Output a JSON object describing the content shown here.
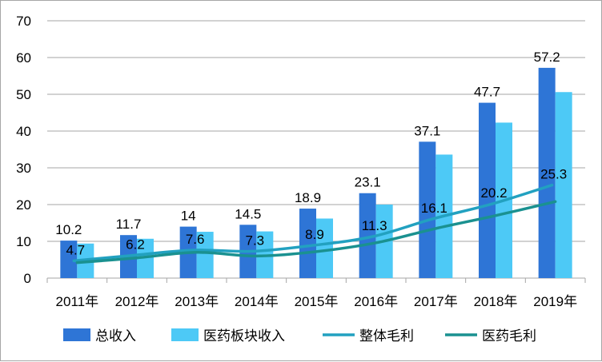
{
  "chart_data": {
    "type": "bar",
    "categories": [
      "2011年",
      "2012年",
      "2013年",
      "2014年",
      "2015年",
      "2016年",
      "2017年",
      "2018年",
      "2019年"
    ],
    "ylim": [
      0,
      70
    ],
    "yticks": [
      0,
      10,
      20,
      30,
      40,
      50,
      60,
      70
    ],
    "grid": true,
    "legend_position": "bottom",
    "series": [
      {
        "name": "总收入",
        "kind": "bar",
        "color": "#2e75d6",
        "values": [
          10.2,
          11.7,
          14,
          14.5,
          18.9,
          23.1,
          37.1,
          47.7,
          57.2
        ],
        "labels": [
          "10.2",
          "11.7",
          "14",
          "14.5",
          "18.9",
          "23.1",
          "37.1",
          "47.7",
          "57.2"
        ]
      },
      {
        "name": "医药板块收入",
        "kind": "bar",
        "color": "#4dc9f6",
        "values": [
          9.4,
          10.7,
          12.6,
          12.7,
          16.2,
          20.0,
          33.6,
          42.3,
          50.6
        ]
      },
      {
        "name": "整体毛利",
        "kind": "line",
        "color": "#22a1c0",
        "values": [
          4.7,
          6.2,
          7.6,
          7.3,
          8.9,
          11.3,
          16.1,
          20.2,
          25.3
        ],
        "labels": [
          "4.7",
          "6.2",
          "7.6",
          "7.3",
          "8.9",
          "11.3",
          "16.1",
          "20.2",
          "25.3"
        ]
      },
      {
        "name": "医药毛利",
        "kind": "line",
        "color": "#1a9190",
        "values": [
          4.2,
          5.5,
          7.0,
          6.0,
          7.2,
          9.6,
          13.5,
          17.0,
          20.8
        ]
      }
    ]
  }
}
